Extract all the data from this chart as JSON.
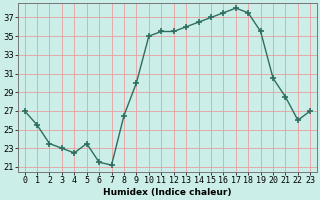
{
  "x": [
    0,
    1,
    2,
    3,
    4,
    5,
    6,
    7,
    8,
    9,
    10,
    11,
    12,
    13,
    14,
    15,
    16,
    17,
    18,
    19,
    20,
    21,
    22,
    23
  ],
  "y": [
    27,
    25.5,
    23.5,
    23,
    22.5,
    23.5,
    21.5,
    21.2,
    26.5,
    30,
    35,
    35.5,
    35.5,
    36,
    36.5,
    37,
    37.5,
    38,
    37.5,
    35.5,
    30.5,
    28.5,
    26,
    27
  ],
  "line_color": "#2d6e5e",
  "marker": "+",
  "markersize": 4,
  "markeredgewidth": 1.2,
  "linewidth": 1.0,
  "background_color": "#cceee8",
  "grid_color": "#e8a0a0",
  "xlabel": "Humidex (Indice chaleur)",
  "ylabel": "",
  "xlim": [
    -0.5,
    23.5
  ],
  "ylim": [
    20.5,
    38.5
  ],
  "yticks": [
    21,
    23,
    25,
    27,
    29,
    31,
    33,
    35,
    37
  ],
  "xticks": [
    0,
    1,
    2,
    3,
    4,
    5,
    6,
    7,
    8,
    9,
    10,
    11,
    12,
    13,
    14,
    15,
    16,
    17,
    18,
    19,
    20,
    21,
    22,
    23
  ],
  "xlabel_fontsize": 6.5,
  "tick_fontsize": 6,
  "ylabel_fontsize": 6
}
